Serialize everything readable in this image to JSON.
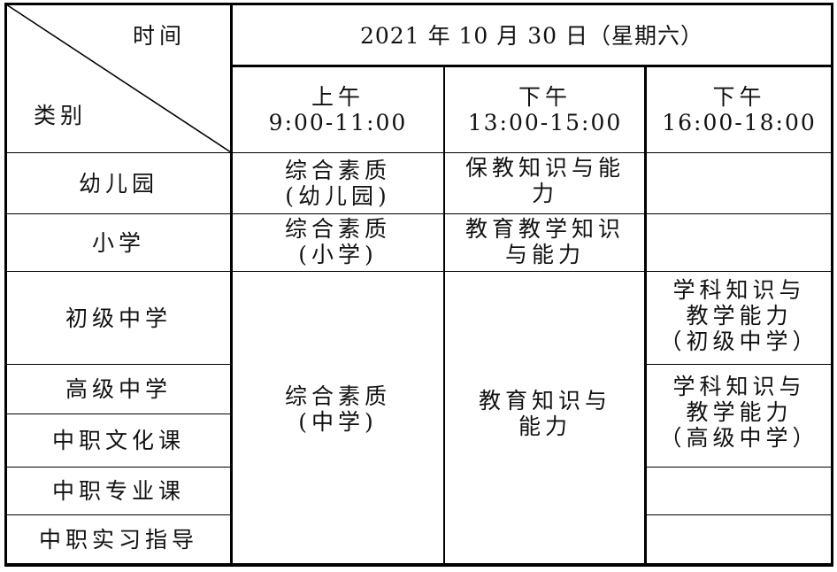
{
  "header": {
    "corner_time": "时间",
    "corner_category": "类别",
    "date": "2021 年 10 月 30 日（星期六）",
    "sessions": [
      {
        "period": "上午",
        "time": "9:00-11:00"
      },
      {
        "period": "下午",
        "time": "13:00-15:00"
      },
      {
        "period": "下午",
        "time": "16:00-18:00"
      }
    ]
  },
  "categories": [
    "幼儿园",
    "小学",
    "初级中学",
    "高级中学",
    "中职文化课",
    "中职专业课",
    "中职实习指导"
  ],
  "cells": {
    "kindergarten_am": [
      "综合素质",
      "(幼儿园)"
    ],
    "kindergarten_pm1": [
      "保教知识与能",
      "力"
    ],
    "primary_am": [
      "综合素质",
      "(小学)"
    ],
    "primary_pm1": [
      "教育教学知识",
      "与能力"
    ],
    "secondary_am": [
      "综合素质",
      "(中学)"
    ],
    "secondary_pm1": [
      "教育知识与",
      "能力"
    ],
    "junior_pm2": [
      "学科知识与",
      "教学能力",
      "（初级中学）"
    ],
    "senior_pm2": [
      "学科知识与",
      "教学能力",
      "（高级中学）"
    ]
  }
}
